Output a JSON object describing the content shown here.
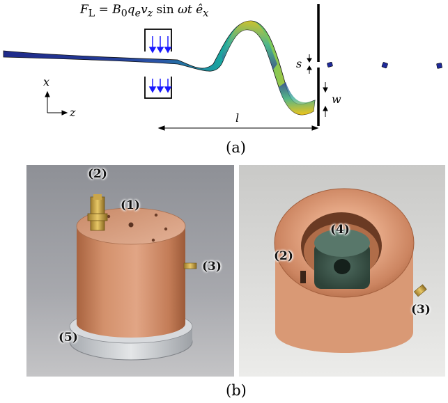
{
  "figure_a": {
    "formula": "F⃗L = B0qevz sin ωt êx",
    "formula_parts": {
      "F": "F",
      "F_sub": "L",
      "eq": " = ",
      "B": "B",
      "B_sub": "0",
      "q": "q",
      "q_sub": "e",
      "v": "v",
      "v_sub": "z",
      "sin": " sin ",
      "wt": "ωt ",
      "e": "ê",
      "e_sub": "x"
    },
    "axis_x_label": "x",
    "axis_z_label": "z",
    "label_s": "s",
    "label_w": "w",
    "label_l": "l",
    "caption": "(a)"
  },
  "figure_b": {
    "left_labels": [
      "(2)",
      "(1)",
      "(3)",
      "(5)"
    ],
    "right_labels": [
      "(4)",
      "(2)",
      "(3)"
    ],
    "caption": "(b)"
  },
  "colors": {
    "beam_dark": "#1f2a8a",
    "beam_teal": "#1aa6a0",
    "beam_yellow": "#f3c418",
    "arrow_blue": "#1a1aff",
    "copper": "#c7805a",
    "aluminum": "#c9cdd2"
  }
}
